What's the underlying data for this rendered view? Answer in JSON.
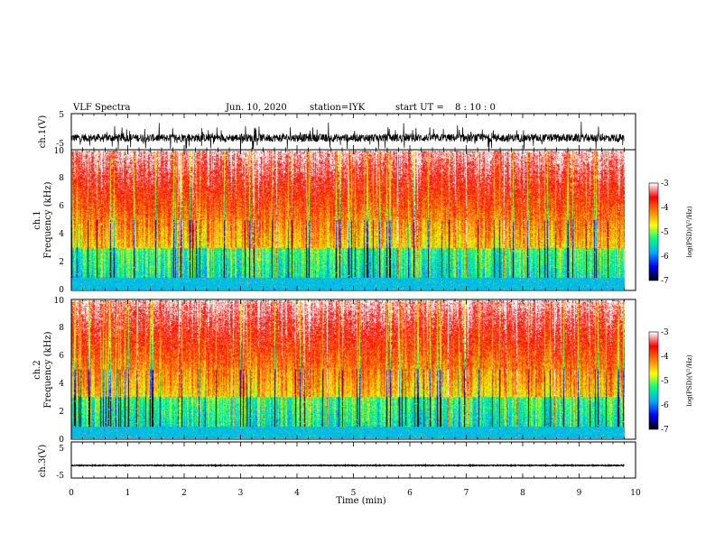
{
  "header": {
    "title": "VLF Spectra",
    "date": "Jun. 10, 2020",
    "station": "station=IYK",
    "start_label": "start UT =",
    "start_time": "8 : 10 : 0"
  },
  "chart_data": [
    {
      "type": "line",
      "panel": "ch1-waveform",
      "ylabel": "ch.1(V)",
      "ylim": [
        -5,
        5
      ],
      "yticks": [
        "5",
        "-5"
      ],
      "baseline": -1.7,
      "xlim": [
        0,
        10
      ],
      "data_extent_min": [
        0,
        9.8
      ]
    },
    {
      "type": "heatmap",
      "panel": "ch1-spectrogram",
      "ylabel_line1": "ch.1",
      "ylabel_line2": "Frequency (kHz)",
      "ylim": [
        0,
        10
      ],
      "yticks": [
        "0",
        "2",
        "4",
        "6",
        "8",
        "10"
      ],
      "xlim": [
        0,
        10
      ],
      "data_extent_min": [
        0,
        9.8
      ],
      "colorbar": {
        "label": "log(PSD)(V²/Hz)",
        "range": [
          -7,
          -3
        ],
        "ticks": [
          "-3",
          "-4",
          "-5",
          "-6",
          "-7"
        ]
      }
    },
    {
      "type": "heatmap",
      "panel": "ch2-spectrogram",
      "ylabel_line1": "ch.2",
      "ylabel_line2": "Frequency (kHz)",
      "ylim": [
        0,
        10
      ],
      "yticks": [
        "0",
        "2",
        "4",
        "6",
        "8",
        "10"
      ],
      "xlim": [
        0,
        10
      ],
      "data_extent_min": [
        0,
        9.8
      ],
      "colorbar": {
        "label": "log(PSD)(V²/Hz)",
        "range": [
          -7,
          -3
        ],
        "ticks": [
          "-3",
          "-4",
          "-5",
          "-6",
          "-7"
        ]
      }
    },
    {
      "type": "line",
      "panel": "ch3-waveform",
      "ylabel": "ch.3(V)",
      "ylim": [
        -5,
        5
      ],
      "yticks": [
        "5",
        "-5"
      ],
      "baseline": -1.5,
      "xlim": [
        0,
        10
      ],
      "data_extent_min": [
        0,
        9.8
      ]
    }
  ],
  "xaxis": {
    "label": "Time (min)",
    "ticks": [
      "0",
      "1",
      "2",
      "3",
      "4",
      "5",
      "6",
      "7",
      "8",
      "9",
      "10"
    ]
  },
  "colors": {
    "axis": "#000000",
    "waveform": "#000000",
    "colormap": [
      "#000000",
      "#0000ff",
      "#00aaff",
      "#00ff80",
      "#ffff00",
      "#ff8000",
      "#ff0000",
      "#ffffff"
    ]
  }
}
